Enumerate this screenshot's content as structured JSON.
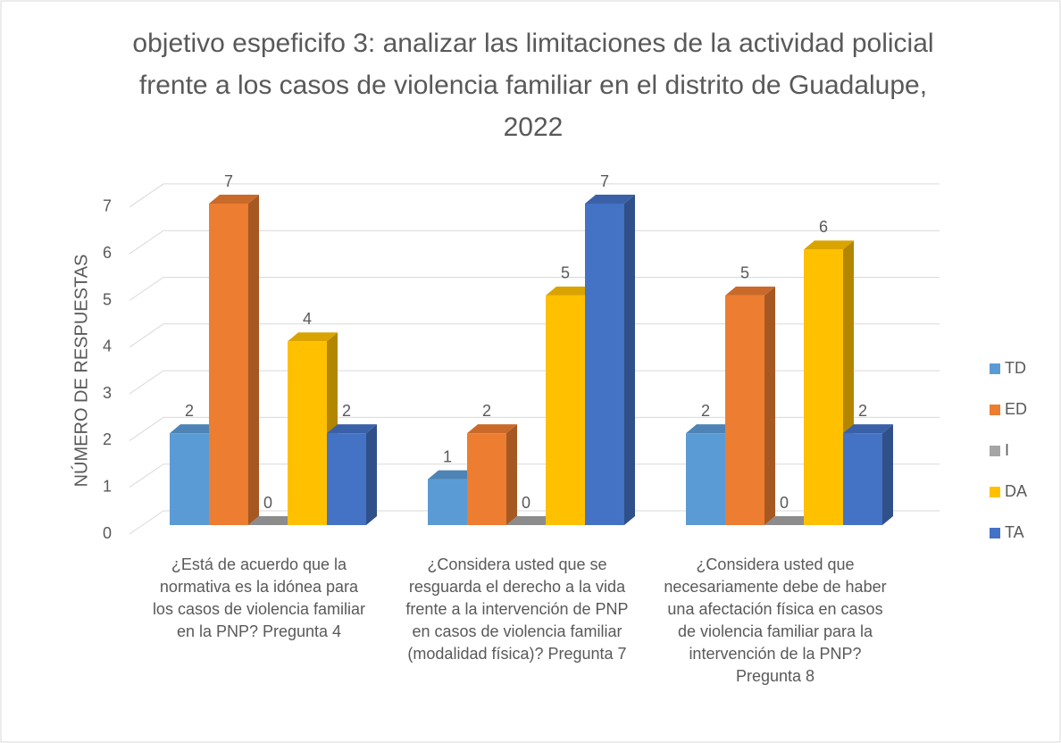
{
  "chart_data": {
    "type": "bar3d",
    "title": "objetivo espeficifo 3: analizar las limitaciones de la actividad policial frente a los casos de violencia familiar en el distrito de Guadalupe, 2022",
    "y_label": "NÚMERO DE RESPUESTAS",
    "categories": [
      "¿Está de acuerdo que la normativa es la idónea para los casos de violencia familiar en la PNP? Pregunta 4",
      "¿Considera usted que se resguarda el derecho a la vida frente a la intervención de PNP en casos de violencia familiar (modalidad física)? Pregunta 7",
      "¿Considera usted que necesariamente debe de haber una afectación física en casos de violencia familiar para la intervención de la PNP? Pregunta 8"
    ],
    "series": [
      {
        "name": "TD",
        "color": "#5b9bd5",
        "values": [
          2,
          1,
          2
        ]
      },
      {
        "name": "ED",
        "color": "#ed7d31",
        "values": [
          7,
          2,
          5
        ]
      },
      {
        "name": "I",
        "color": "#a5a5a5",
        "values": [
          0,
          0,
          0
        ]
      },
      {
        "name": "DA",
        "color": "#ffc000",
        "values": [
          4,
          5,
          6
        ]
      },
      {
        "name": "TA",
        "color": "#4472c4",
        "values": [
          2,
          7,
          2
        ]
      }
    ],
    "ylim": [
      0,
      7
    ],
    "yticks": [
      0,
      1,
      2,
      3,
      4,
      5,
      6,
      7
    ],
    "grid": true,
    "legend": "right"
  }
}
